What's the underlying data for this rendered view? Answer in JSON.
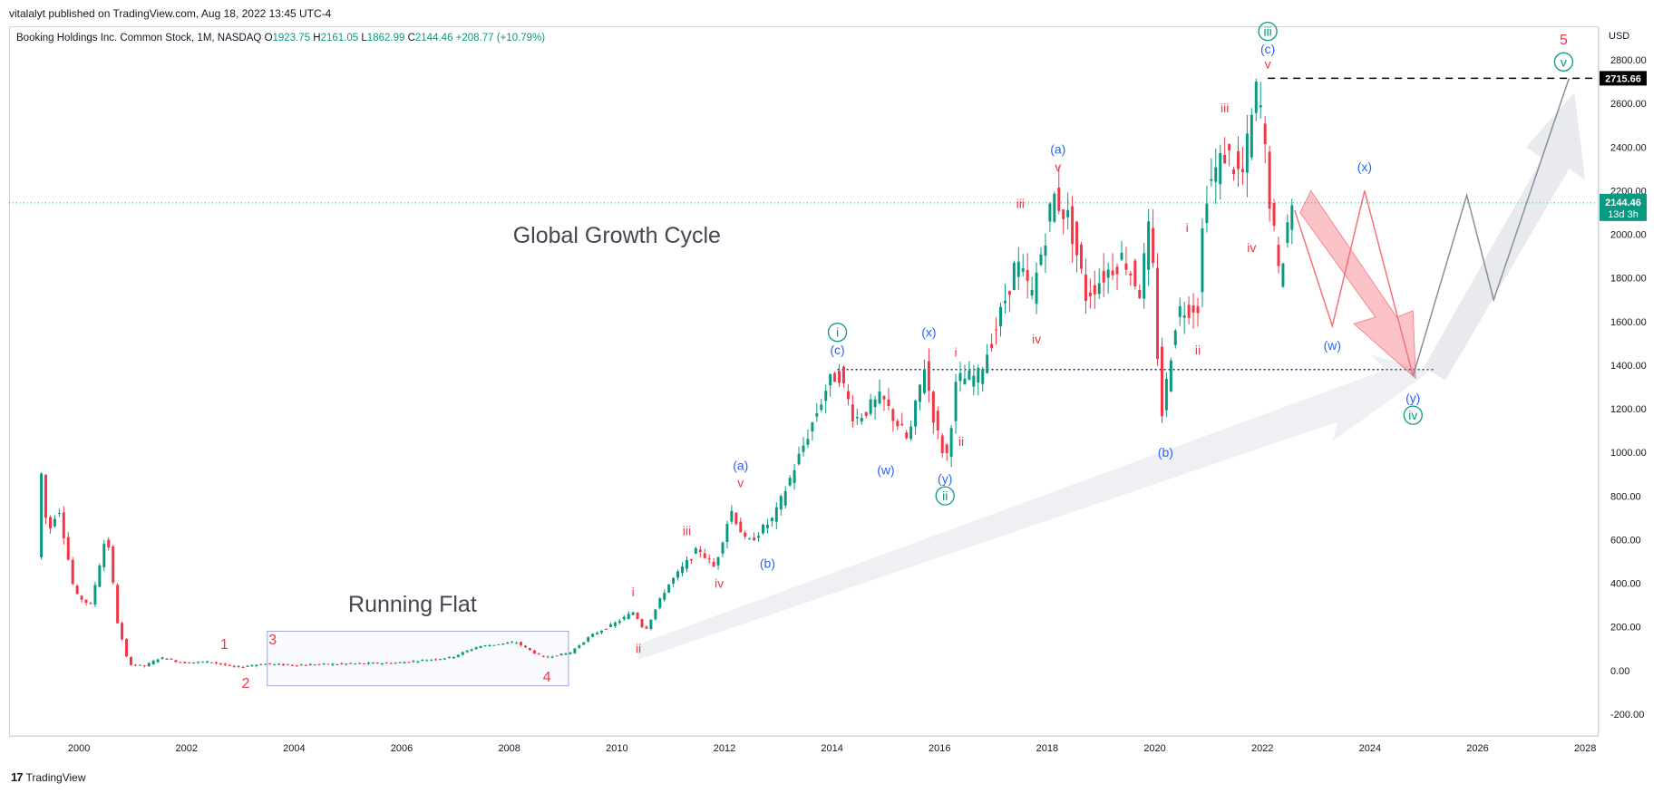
{
  "header": {
    "published": "vitalalyt published on TradingView.com, Aug 18, 2022 13:45 UTC-4"
  },
  "legend": {
    "symbol": "Booking Holdings Inc. Common Stock, 1M, NASDAQ",
    "open_label": "O",
    "open": "1923.75",
    "high_label": "H",
    "high": "2161.05",
    "low_label": "L",
    "low": "1862.99",
    "close_label": "C",
    "close": "2144.46",
    "change": "+208.77 (+10.79%)"
  },
  "footer": {
    "brand": "TradingView"
  },
  "colors": {
    "up": "#089981",
    "down": "#f23645",
    "wave_blue": "#2962ff",
    "wave_red": "#f23645",
    "wave_green": "#089981"
  },
  "chart_data": {
    "type": "candlestick",
    "currency": "USD",
    "ylim": [
      -300,
      2950
    ],
    "xlim": [
      1998.7,
      2028.2
    ],
    "y_ticks": [
      "-200.00",
      "0.00",
      "200.00",
      "400.00",
      "600.00",
      "800.00",
      "1000.00",
      "1200.00",
      "1400.00",
      "1600.00",
      "1800.00",
      "2000.00",
      "2200.00",
      "2400.00",
      "2600.00",
      "2800.00"
    ],
    "x_ticks": [
      "2000",
      "2002",
      "2004",
      "2006",
      "2008",
      "2010",
      "2012",
      "2014",
      "2016",
      "2018",
      "2020",
      "2022",
      "2024",
      "2026",
      "2028"
    ],
    "last_price": {
      "value": 2144.46,
      "label": "2144.46",
      "countdown": "13d 3h"
    },
    "target_price": {
      "value": 2715.66,
      "label": "2715.66"
    },
    "support_level": 1380,
    "price_path": [
      [
        1999.3,
        520
      ],
      [
        1999.35,
        980
      ],
      [
        1999.5,
        620
      ],
      [
        1999.7,
        760
      ],
      [
        2000.0,
        350
      ],
      [
        2000.3,
        300
      ],
      [
        2000.6,
        640
      ],
      [
        2000.8,
        220
      ],
      [
        2001.0,
        30
      ],
      [
        2001.3,
        20
      ],
      [
        2001.6,
        60
      ],
      [
        2002.0,
        35
      ],
      [
        2002.5,
        40
      ],
      [
        2003.0,
        15
      ],
      [
        2003.5,
        30
      ],
      [
        2004.0,
        25
      ],
      [
        2005.0,
        30
      ],
      [
        2006.0,
        35
      ],
      [
        2007.0,
        60
      ],
      [
        2007.5,
        110
      ],
      [
        2008.2,
        130
      ],
      [
        2008.7,
        60
      ],
      [
        2009.2,
        80
      ],
      [
        2009.6,
        160
      ],
      [
        2010.0,
        210
      ],
      [
        2010.4,
        270
      ],
      [
        2010.6,
        180
      ],
      [
        2011.0,
        380
      ],
      [
        2011.6,
        560
      ],
      [
        2011.9,
        470
      ],
      [
        2012.2,
        740
      ],
      [
        2012.5,
        580
      ],
      [
        2013.0,
        700
      ],
      [
        2013.5,
        1000
      ],
      [
        2014.0,
        1310
      ],
      [
        2014.2,
        1370
      ],
      [
        2014.5,
        1150
      ],
      [
        2015.0,
        1250
      ],
      [
        2015.5,
        1050
      ],
      [
        2015.8,
        1400
      ],
      [
        2016.0,
        1120
      ],
      [
        2016.2,
        960
      ],
      [
        2016.4,
        1330
      ],
      [
        2016.8,
        1350
      ],
      [
        2017.2,
        1620
      ],
      [
        2017.5,
        1870
      ],
      [
        2017.8,
        1720
      ],
      [
        2018.2,
        2180
      ],
      [
        2018.5,
        2060
      ],
      [
        2018.8,
        1720
      ],
      [
        2019.2,
        1830
      ],
      [
        2019.5,
        1900
      ],
      [
        2019.8,
        1740
      ],
      [
        2020.0,
        2060
      ],
      [
        2020.2,
        1150
      ],
      [
        2020.5,
        1650
      ],
      [
        2020.9,
        1680
      ],
      [
        2021.0,
        2180
      ],
      [
        2021.4,
        2380
      ],
      [
        2021.7,
        2250
      ],
      [
        2022.0,
        2700
      ],
      [
        2022.2,
        2200
      ],
      [
        2022.4,
        1780
      ],
      [
        2022.6,
        2144
      ]
    ],
    "projections": {
      "blue_wxy": [
        [
          2022.6,
          2110
        ],
        [
          2023.3,
          1580
        ],
        [
          2023.9,
          2200
        ],
        [
          2024.8,
          1350
        ]
      ],
      "gray_v": [
        [
          2024.8,
          1350
        ],
        [
          2025.8,
          2180
        ],
        [
          2026.3,
          1700
        ],
        [
          2027.7,
          2715
        ]
      ]
    },
    "annotations": [
      {
        "text": "Global Growth Cycle",
        "kind": "title",
        "x": 2010.0,
        "y": 1960
      },
      {
        "text": "Running Flat",
        "kind": "title",
        "x": 2006.2,
        "y": 270
      },
      {
        "text": "1",
        "c": "red",
        "x": 2002.7,
        "y": 100
      },
      {
        "text": "2",
        "c": "red",
        "x": 2003.1,
        "y": -80
      },
      {
        "text": "3",
        "c": "red",
        "x": 2003.6,
        "y": 120
      },
      {
        "text": "4",
        "c": "red",
        "x": 2008.7,
        "y": -50
      },
      {
        "text": "5",
        "c": "red",
        "x": 2027.6,
        "y": 2870
      },
      {
        "text": "i",
        "c": "red",
        "x": 2010.3,
        "y": 340
      },
      {
        "text": "ii",
        "c": "red",
        "x": 2010.4,
        "y": 80
      },
      {
        "text": "iii",
        "c": "red",
        "x": 2011.3,
        "y": 620
      },
      {
        "text": "iv",
        "c": "red",
        "x": 2011.9,
        "y": 380
      },
      {
        "text": "v",
        "c": "red",
        "x": 2012.3,
        "y": 840
      },
      {
        "text": "(a)",
        "c": "blue",
        "x": 2012.3,
        "y": 920
      },
      {
        "text": "(b)",
        "c": "blue",
        "x": 2012.8,
        "y": 470
      },
      {
        "text": "(c)",
        "c": "blue",
        "x": 2014.1,
        "y": 1450
      },
      {
        "text": "i",
        "c": "green",
        "circle": true,
        "x": 2014.1,
        "y": 1530
      },
      {
        "text": "(w)",
        "c": "blue",
        "x": 2015.0,
        "y": 900
      },
      {
        "text": "(x)",
        "c": "blue",
        "x": 2015.8,
        "y": 1530
      },
      {
        "text": "(y)",
        "c": "blue",
        "x": 2016.1,
        "y": 860
      },
      {
        "text": "ii",
        "c": "green",
        "circle": true,
        "x": 2016.1,
        "y": 780
      },
      {
        "text": "i",
        "c": "red",
        "x": 2016.3,
        "y": 1440
      },
      {
        "text": "ii",
        "c": "red",
        "x": 2016.4,
        "y": 1030
      },
      {
        "text": "iii",
        "c": "red",
        "x": 2017.5,
        "y": 2120
      },
      {
        "text": "iv",
        "c": "red",
        "x": 2017.8,
        "y": 1500
      },
      {
        "text": "v",
        "c": "red",
        "x": 2018.2,
        "y": 2290
      },
      {
        "text": "(a)",
        "c": "blue",
        "x": 2018.2,
        "y": 2370
      },
      {
        "text": "(b)",
        "c": "blue",
        "x": 2020.2,
        "y": 980
      },
      {
        "text": "i",
        "c": "red",
        "x": 2020.6,
        "y": 2010
      },
      {
        "text": "ii",
        "c": "red",
        "x": 2020.8,
        "y": 1450
      },
      {
        "text": "iii",
        "c": "red",
        "x": 2021.3,
        "y": 2560
      },
      {
        "text": "iv",
        "c": "red",
        "x": 2021.8,
        "y": 1920
      },
      {
        "text": "v",
        "c": "red",
        "x": 2022.1,
        "y": 2760
      },
      {
        "text": "(c)",
        "c": "blue",
        "x": 2022.1,
        "y": 2830
      },
      {
        "text": "iii",
        "c": "green",
        "circle": true,
        "x": 2022.1,
        "y": 2910
      },
      {
        "text": "(w)",
        "c": "blue",
        "x": 2023.3,
        "y": 1470
      },
      {
        "text": "(x)",
        "c": "blue",
        "x": 2023.9,
        "y": 2290
      },
      {
        "text": "(y)",
        "c": "blue",
        "x": 2024.8,
        "y": 1230
      },
      {
        "text": "iv",
        "c": "green",
        "circle": true,
        "x": 2024.8,
        "y": 1150
      },
      {
        "text": "v",
        "c": "green",
        "circle": true,
        "x": 2027.6,
        "y": 2770
      }
    ]
  }
}
